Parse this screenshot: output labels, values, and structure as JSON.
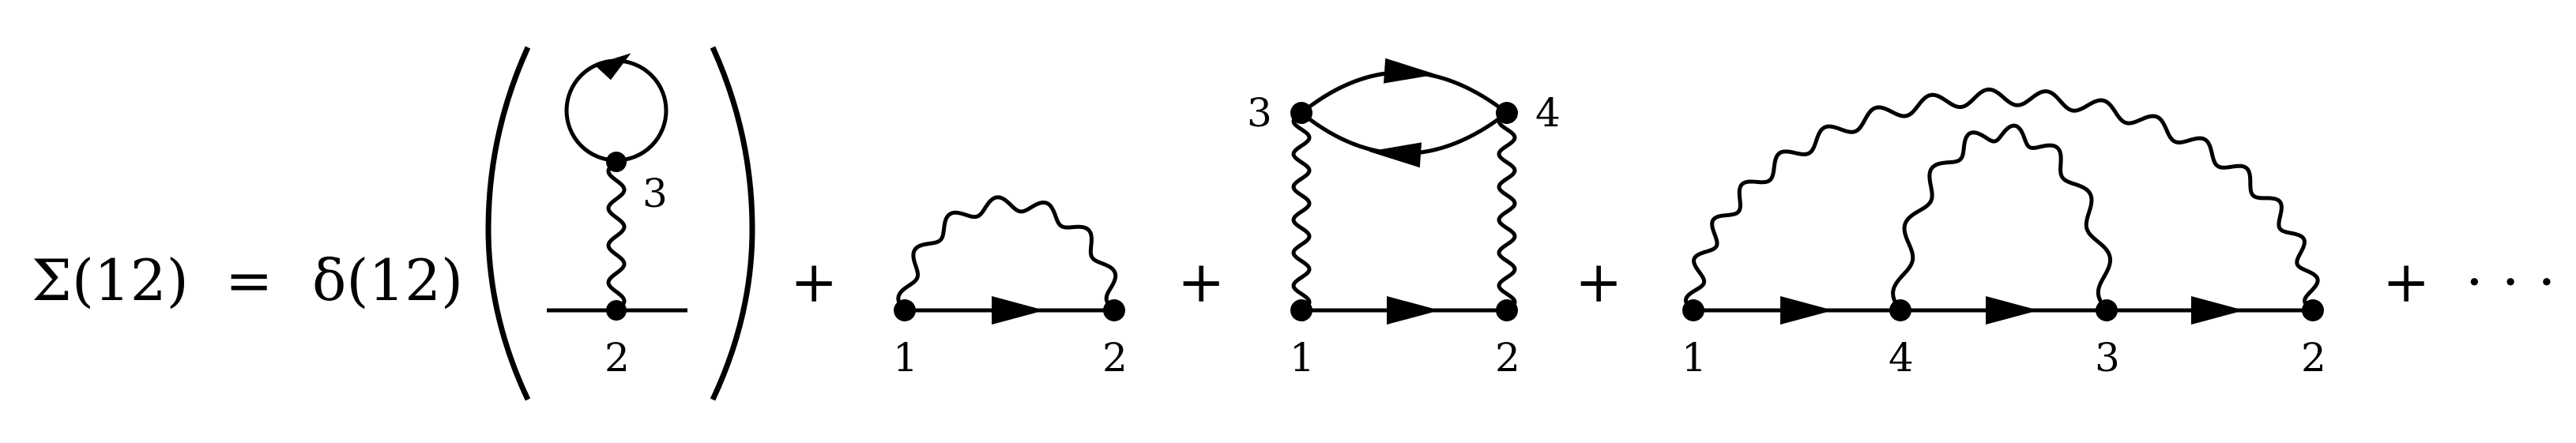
{
  "equation": {
    "lhs": "Σ(12)",
    "equals": "=",
    "delta": "δ(12)",
    "open_paren": "(",
    "close_paren": ")",
    "plus": "+",
    "ellipsis": "· · ·"
  },
  "diagrams": {
    "tadpole": {
      "vertex_top": "3",
      "vertex_bottom": "2"
    },
    "exchange": {
      "left": "1",
      "right": "2"
    },
    "polarization": {
      "top_left": "3",
      "top_right": "4",
      "bottom_left": "1",
      "bottom_right": "2"
    },
    "crossed": {
      "v1": "1",
      "v2": "4",
      "v3": "3",
      "v4": "2"
    }
  },
  "style": {
    "ink": "#000000",
    "background": "#ffffff"
  }
}
